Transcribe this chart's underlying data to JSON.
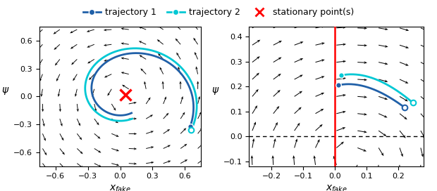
{
  "fig_width": 6.2,
  "fig_height": 2.72,
  "dpi": 100,
  "legend": {
    "traj1_label": "trajectory 1",
    "traj2_label": "trajectory 2",
    "stat_label": "stationary point(s)",
    "traj1_color": "#2060a8",
    "traj2_color": "#00c8d4",
    "stat_color": "red"
  },
  "plot1": {
    "xlim": [
      -0.75,
      0.75
    ],
    "ylim": [
      -0.75,
      0.75
    ],
    "xlabel": "$x_{fake}$",
    "ylabel": "$\\psi$",
    "xticks": [
      -0.6,
      -0.3,
      0.0,
      0.3,
      0.6
    ],
    "yticks": [
      -0.6,
      -0.3,
      0.0,
      0.3,
      0.6
    ],
    "stationary_point": [
      0.05,
      0.02
    ],
    "quiver_nx": 10,
    "quiver_ny": 10
  },
  "plot2": {
    "xlim": [
      -0.27,
      0.28
    ],
    "ylim": [
      -0.12,
      0.44
    ],
    "xlabel": "$x_{fake}$",
    "ylabel": "$\\psi$",
    "xticks": [
      -0.2,
      -0.1,
      0.0,
      0.1,
      0.2
    ],
    "yticks": [
      -0.1,
      0.0,
      0.1,
      0.2,
      0.3,
      0.4
    ],
    "quiver_nx": 9,
    "quiver_ny": 9
  }
}
